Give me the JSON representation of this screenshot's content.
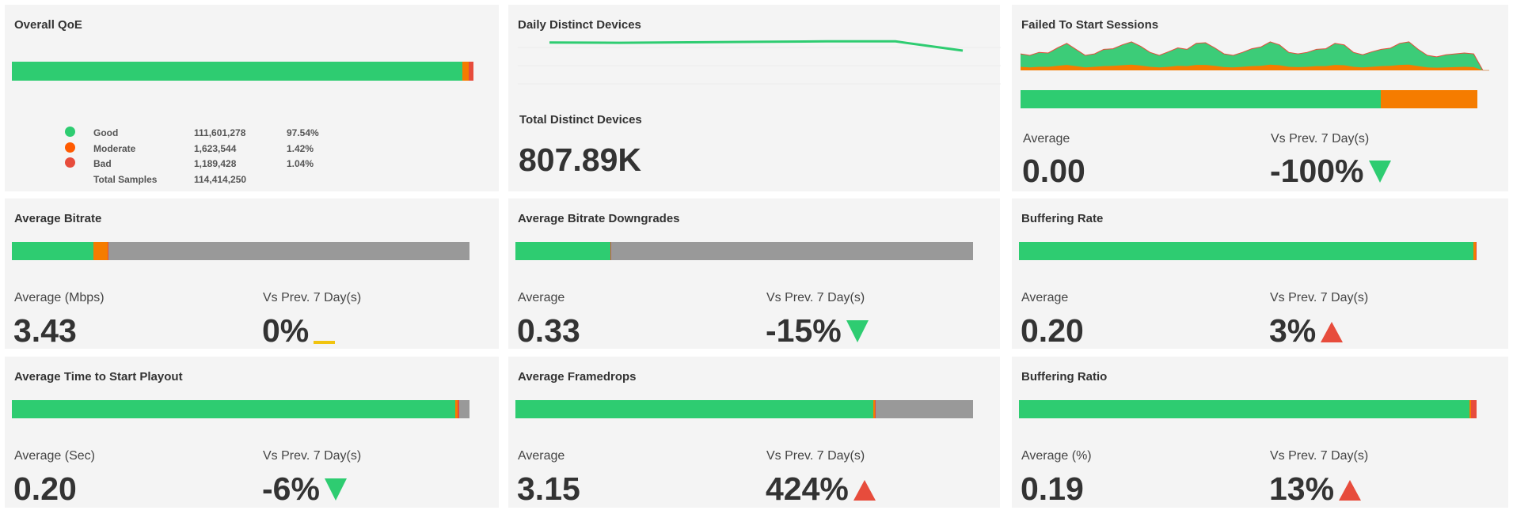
{
  "colors": {
    "good": "#2ecc71",
    "moderate": "#f57c00",
    "bad": "#e74c3c",
    "neutral": "#999999",
    "flat": "#f1c40f"
  },
  "overall_qoe": {
    "title": "Overall QoE",
    "segments": [
      {
        "name": "good",
        "pct": 97.54
      },
      {
        "name": "moderate",
        "pct": 1.42
      },
      {
        "name": "bad",
        "pct": 1.04
      }
    ],
    "legend": [
      {
        "label": "Good",
        "count": "111,601,278",
        "pct": "97.54%",
        "color": "#2ecc71"
      },
      {
        "label": "Moderate",
        "count": "1,623,544",
        "pct": "1.42%",
        "color": "#ff5a00"
      },
      {
        "label": "Bad",
        "count": "1,189,428",
        "pct": "1.04%",
        "color": "#e74c3c"
      },
      {
        "label": "Total Samples",
        "count": "114,414,250",
        "pct": "",
        "color": ""
      }
    ]
  },
  "daily_devices": {
    "title": "Daily Distinct Devices",
    "line_values": [
      0.97,
      0.965,
      0.975,
      0.985,
      0.995,
      0.995,
      0.8
    ],
    "total_label": "Total Distinct Devices",
    "total_value": "807.89K"
  },
  "failed_sessions": {
    "title": "Failed To Start Sessions",
    "area_total": [
      0.55,
      0.5,
      0.6,
      0.58,
      0.75,
      0.9,
      0.7,
      0.5,
      0.55,
      0.7,
      0.72,
      0.85,
      0.95,
      0.8,
      0.6,
      0.5,
      0.62,
      0.75,
      0.7,
      0.9,
      0.92,
      0.75,
      0.55,
      0.5,
      0.6,
      0.72,
      0.78,
      0.95,
      0.85,
      0.6,
      0.55,
      0.6,
      0.7,
      0.72,
      0.9,
      0.85,
      0.6,
      0.52,
      0.62,
      0.7,
      0.74,
      0.9,
      0.95,
      0.7,
      0.5,
      0.45,
      0.52,
      0.55,
      0.58,
      0.55,
      0.0
    ],
    "area_moderate": [
      0.12,
      0.1,
      0.12,
      0.12,
      0.15,
      0.18,
      0.14,
      0.1,
      0.12,
      0.14,
      0.15,
      0.17,
      0.19,
      0.16,
      0.12,
      0.1,
      0.12,
      0.15,
      0.14,
      0.18,
      0.18,
      0.15,
      0.11,
      0.1,
      0.12,
      0.14,
      0.15,
      0.19,
      0.17,
      0.12,
      0.11,
      0.12,
      0.14,
      0.14,
      0.18,
      0.17,
      0.12,
      0.1,
      0.12,
      0.14,
      0.15,
      0.18,
      0.19,
      0.14,
      0.1,
      0.09,
      0.1,
      0.11,
      0.12,
      0.11,
      0.0
    ],
    "segments": [
      {
        "name": "good",
        "pct": 78.9
      },
      {
        "name": "moderate",
        "pct": 21.1
      }
    ],
    "avg_label": "Average",
    "avg_value": "0.00",
    "vs_label": "Vs Prev. 7 Day(s)",
    "vs_value": "-100%",
    "trend": "down-good"
  },
  "metrics": [
    {
      "id": "average-bitrate",
      "title": "Average Bitrate",
      "segments": [
        {
          "name": "good",
          "pct": 17.9
        },
        {
          "name": "moderate",
          "pct": 3.0
        },
        {
          "name": "bad",
          "pct": 0.2
        },
        {
          "name": "neutral",
          "pct": 78.9
        }
      ],
      "avg_label": "Average (Mbps)",
      "avg_value": "3.43",
      "vs_label": "Vs Prev. 7 Day(s)",
      "vs_value": "0%",
      "trend": "flat"
    },
    {
      "id": "average-bitrate-downgrades",
      "title": "Average Bitrate Downgrades",
      "segments": [
        {
          "name": "good",
          "pct": 20.7
        },
        {
          "name": "bad",
          "pct": 0.3
        },
        {
          "name": "neutral",
          "pct": 79.0
        }
      ],
      "avg_label": "Average",
      "avg_value": "0.33",
      "vs_label": "Vs Prev. 7 Day(s)",
      "vs_value": "-15%",
      "trend": "down-good"
    },
    {
      "id": "buffering-rate",
      "title": "Buffering Rate",
      "segments": [
        {
          "name": "good",
          "pct": 99.3
        },
        {
          "name": "moderate",
          "pct": 0.5
        },
        {
          "name": "bad",
          "pct": 0.2
        }
      ],
      "avg_label": "Average",
      "avg_value": "0.20",
      "vs_label": "Vs Prev. 7 Day(s)",
      "vs_value": "3%",
      "trend": "up-bad"
    },
    {
      "id": "average-time-to-start-playout",
      "title": "Average Time to Start Playout",
      "segments": [
        {
          "name": "good",
          "pct": 96.8
        },
        {
          "name": "moderate",
          "pct": 0.6
        },
        {
          "name": "bad",
          "pct": 0.3
        },
        {
          "name": "neutral",
          "pct": 2.3
        }
      ],
      "avg_label": "Average (Sec)",
      "avg_value": "0.20",
      "vs_label": "Vs Prev. 7 Day(s)",
      "vs_value": "-6%",
      "trend": "down-good"
    },
    {
      "id": "average-framedrops",
      "title": "Average Framedrops",
      "segments": [
        {
          "name": "good",
          "pct": 78.2
        },
        {
          "name": "moderate",
          "pct": 0.3
        },
        {
          "name": "bad",
          "pct": 0.3
        },
        {
          "name": "neutral",
          "pct": 21.2
        }
      ],
      "avg_label": "Average",
      "avg_value": "3.15",
      "vs_label": "Vs Prev. 7 Day(s)",
      "vs_value": "424%",
      "trend": "up-bad"
    },
    {
      "id": "buffering-ratio",
      "title": "Buffering Ratio",
      "segments": [
        {
          "name": "good",
          "pct": 98.5
        },
        {
          "name": "moderate",
          "pct": 0.3
        },
        {
          "name": "bad",
          "pct": 1.2
        }
      ],
      "avg_label": "Average (%)",
      "avg_value": "0.19",
      "vs_label": "Vs Prev. 7 Day(s)",
      "vs_value": "13%",
      "trend": "up-bad"
    }
  ]
}
